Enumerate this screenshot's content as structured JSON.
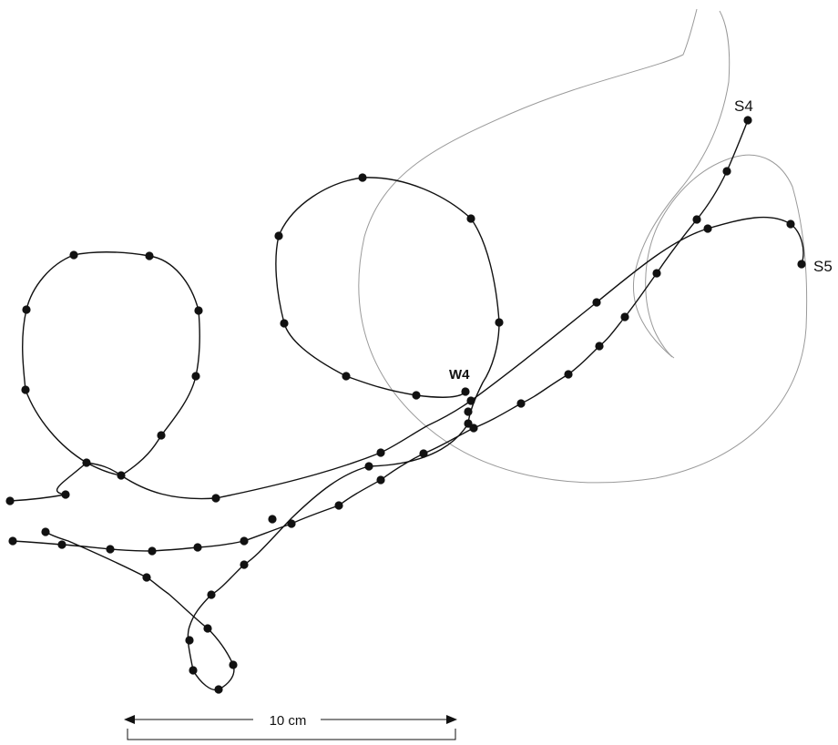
{
  "labels": {
    "s4": "S4",
    "s5": "S5",
    "w4": "W4",
    "scale": "10 cm"
  },
  "colors": {
    "ink": "#111111",
    "faint_track": "#9a9a9a"
  }
}
